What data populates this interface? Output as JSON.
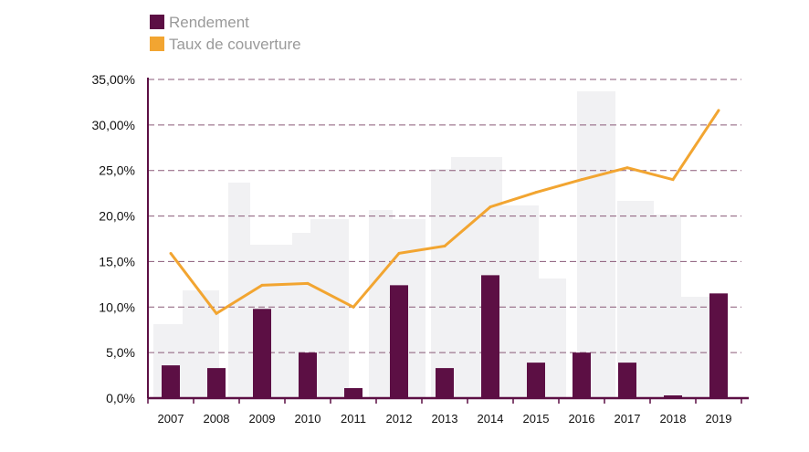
{
  "chart_data": {
    "type": "bar+line",
    "categories": [
      "2007",
      "2008",
      "2009",
      "2010",
      "2011",
      "2012",
      "2013",
      "2014",
      "2015",
      "2016",
      "2017",
      "2018",
      "2019"
    ],
    "series": [
      {
        "name": "Rendement",
        "type": "bar",
        "color": "#5c0f44",
        "values": [
          3.6,
          3.3,
          9.8,
          5.0,
          1.1,
          12.4,
          3.3,
          13.5,
          3.9,
          5.0,
          3.9,
          0.3,
          11.5
        ]
      },
      {
        "name": "Taux de couverture",
        "type": "line",
        "color": "#f2a531",
        "values": [
          15.9,
          9.3,
          12.4,
          12.6,
          10.0,
          15.9,
          16.7,
          21.0,
          22.6,
          24.0,
          25.3,
          24.0,
          31.6
        ]
      }
    ],
    "yticks": [
      {
        "value": 0,
        "label": "0,0%"
      },
      {
        "value": 5,
        "label": "5,0%"
      },
      {
        "value": 10,
        "label": "10,0%"
      },
      {
        "value": 15,
        "label": "15,0%"
      },
      {
        "value": 20,
        "label": "20,0%"
      },
      {
        "value": 25,
        "label": "25,0%"
      },
      {
        "value": 30,
        "label": "30,00%"
      },
      {
        "value": 35,
        "label": "35,00%"
      }
    ],
    "ylim": [
      0,
      35
    ],
    "grid": true,
    "legend_position": "top-left",
    "colors": {
      "axis": "#5c0f44",
      "grid": "#8a5a78"
    }
  }
}
